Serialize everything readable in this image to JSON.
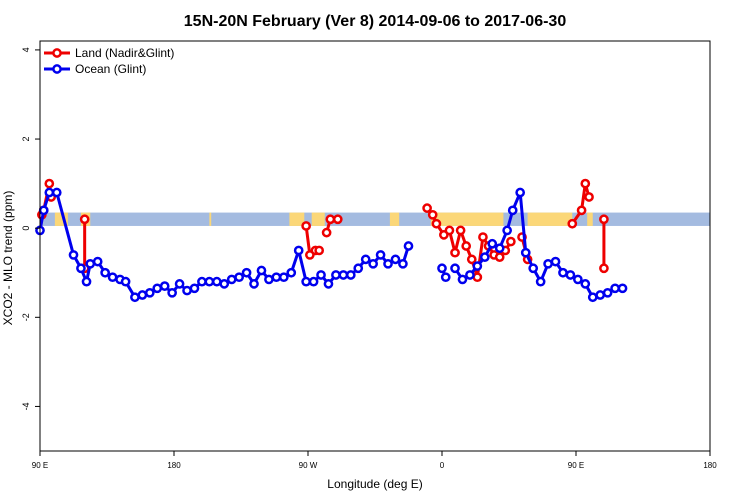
{
  "chart_data": {
    "type": "line",
    "title": "15N-20N February (Ver 8)   2014-09-06 to 2017-06-30",
    "xlabel": "Longitude (deg E)",
    "ylabel": "XCO2 - MLO trend (ppm)",
    "xlim": [
      90,
      450
    ],
    "ylim": [
      -5,
      4.2
    ],
    "x_ticks": [
      {
        "value": 90,
        "label": "90 E"
      },
      {
        "value": 162,
        "label": "180"
      },
      {
        "value": 234,
        "label": "90 W"
      },
      {
        "value": 306,
        "label": "0"
      },
      {
        "value": 378,
        "label": "90 E"
      },
      {
        "value": 450,
        "label": "180"
      }
    ],
    "y_ticks": [
      {
        "value": -4,
        "label": "-4"
      },
      {
        "value": -2,
        "label": "-2"
      },
      {
        "value": 0,
        "label": "0"
      },
      {
        "value": 2,
        "label": "2"
      },
      {
        "value": 4,
        "label": "4"
      }
    ],
    "grid": false,
    "legend_position": "top-left",
    "band": {
      "ocean_color": "#a4bbe0",
      "land_color": "#fbd778",
      "y_range": [
        0.05,
        0.35
      ],
      "land_segments": [
        [
          98,
          105
        ],
        [
          112,
          117
        ],
        [
          181,
          182
        ],
        [
          224,
          232
        ],
        [
          236,
          243
        ],
        [
          278,
          283
        ],
        [
          300,
          339
        ],
        [
          352,
          370
        ],
        [
          369,
          376
        ],
        [
          384,
          387
        ]
      ]
    },
    "series": [
      {
        "name": "Land (Nadir&Glint)",
        "color": "#ee0000",
        "segments": [
          [
            [
              91,
              0.3
            ],
            [
              92,
              0.4
            ],
            [
              95,
              1.0
            ],
            [
              96,
              0.7
            ]
          ],
          [
            [
              114,
              0.2
            ],
            [
              114,
              -0.9
            ]
          ],
          [
            [
              233,
              0.05
            ],
            [
              235,
              -0.6
            ],
            [
              238,
              -0.5
            ],
            [
              240,
              -0.5
            ]
          ],
          [
            [
              244,
              -0.1
            ],
            [
              246,
              0.2
            ],
            [
              250,
              0.2
            ]
          ],
          [
            [
              298,
              0.45
            ],
            [
              301,
              0.3
            ],
            [
              303,
              0.1
            ],
            [
              307,
              -0.15
            ],
            [
              310,
              -0.05
            ],
            [
              313,
              -0.55
            ],
            [
              316,
              -0.05
            ],
            [
              319,
              -0.4
            ],
            [
              322,
              -0.7
            ],
            [
              325,
              -1.1
            ],
            [
              328,
              -0.2
            ],
            [
              331,
              -0.4
            ],
            [
              334,
              -0.6
            ],
            [
              337,
              -0.65
            ],
            [
              340,
              -0.5
            ],
            [
              343,
              -0.3
            ]
          ],
          [
            [
              349,
              -0.2
            ],
            [
              352,
              -0.7
            ]
          ],
          [
            [
              376,
              0.1
            ],
            [
              381,
              0.4
            ],
            [
              383,
              1.0
            ],
            [
              385,
              0.7
            ]
          ],
          [
            [
              393,
              0.2
            ],
            [
              393,
              -0.9
            ]
          ]
        ]
      },
      {
        "name": "Ocean (Glint)",
        "color": "#0000ee",
        "segments": [
          [
            [
              90,
              -0.05
            ],
            [
              92,
              0.4
            ],
            [
              95,
              0.8
            ],
            [
              99,
              0.8
            ],
            [
              108,
              -0.6
            ],
            [
              112,
              -0.9
            ],
            [
              115,
              -1.2
            ],
            [
              117,
              -0.8
            ],
            [
              121,
              -0.75
            ],
            [
              125,
              -1.0
            ],
            [
              129,
              -1.1
            ],
            [
              133,
              -1.15
            ],
            [
              136,
              -1.2
            ],
            [
              141,
              -1.55
            ],
            [
              145,
              -1.5
            ],
            [
              149,
              -1.45
            ],
            [
              153,
              -1.35
            ],
            [
              157,
              -1.3
            ],
            [
              161,
              -1.45
            ],
            [
              165,
              -1.25
            ],
            [
              169,
              -1.4
            ],
            [
              173,
              -1.35
            ],
            [
              177,
              -1.2
            ],
            [
              181,
              -1.2
            ],
            [
              185,
              -1.2
            ],
            [
              189,
              -1.25
            ],
            [
              193,
              -1.15
            ],
            [
              197,
              -1.1
            ],
            [
              201,
              -1.0
            ],
            [
              205,
              -1.25
            ],
            [
              209,
              -0.95
            ],
            [
              213,
              -1.15
            ],
            [
              217,
              -1.1
            ],
            [
              221,
              -1.1
            ],
            [
              225,
              -1.0
            ],
            [
              229,
              -0.5
            ],
            [
              233,
              -1.2
            ],
            [
              237,
              -1.2
            ],
            [
              241,
              -1.05
            ],
            [
              245,
              -1.25
            ],
            [
              249,
              -1.05
            ],
            [
              253,
              -1.05
            ],
            [
              257,
              -1.05
            ],
            [
              261,
              -0.9
            ],
            [
              265,
              -0.7
            ],
            [
              269,
              -0.8
            ],
            [
              273,
              -0.6
            ],
            [
              277,
              -0.8
            ],
            [
              281,
              -0.7
            ],
            [
              285,
              -0.8
            ],
            [
              288,
              -0.4
            ]
          ],
          [
            [
              306,
              -0.9
            ],
            [
              308,
              -1.1
            ]
          ],
          [
            [
              313,
              -0.9
            ],
            [
              317,
              -1.15
            ],
            [
              321,
              -1.05
            ],
            [
              325,
              -0.85
            ],
            [
              329,
              -0.65
            ],
            [
              333,
              -0.35
            ],
            [
              337,
              -0.45
            ],
            [
              341,
              -0.05
            ],
            [
              344,
              0.4
            ],
            [
              348,
              0.8
            ],
            [
              351,
              -0.55
            ],
            [
              355,
              -0.9
            ],
            [
              359,
              -1.2
            ],
            [
              363,
              -0.8
            ],
            [
              367,
              -0.75
            ],
            [
              371,
              -1.0
            ],
            [
              375,
              -1.05
            ],
            [
              379,
              -1.15
            ],
            [
              383,
              -1.25
            ],
            [
              387,
              -1.55
            ],
            [
              391,
              -1.5
            ],
            [
              395,
              -1.45
            ],
            [
              399,
              -1.35
            ],
            [
              403,
              -1.35
            ]
          ]
        ]
      }
    ]
  }
}
